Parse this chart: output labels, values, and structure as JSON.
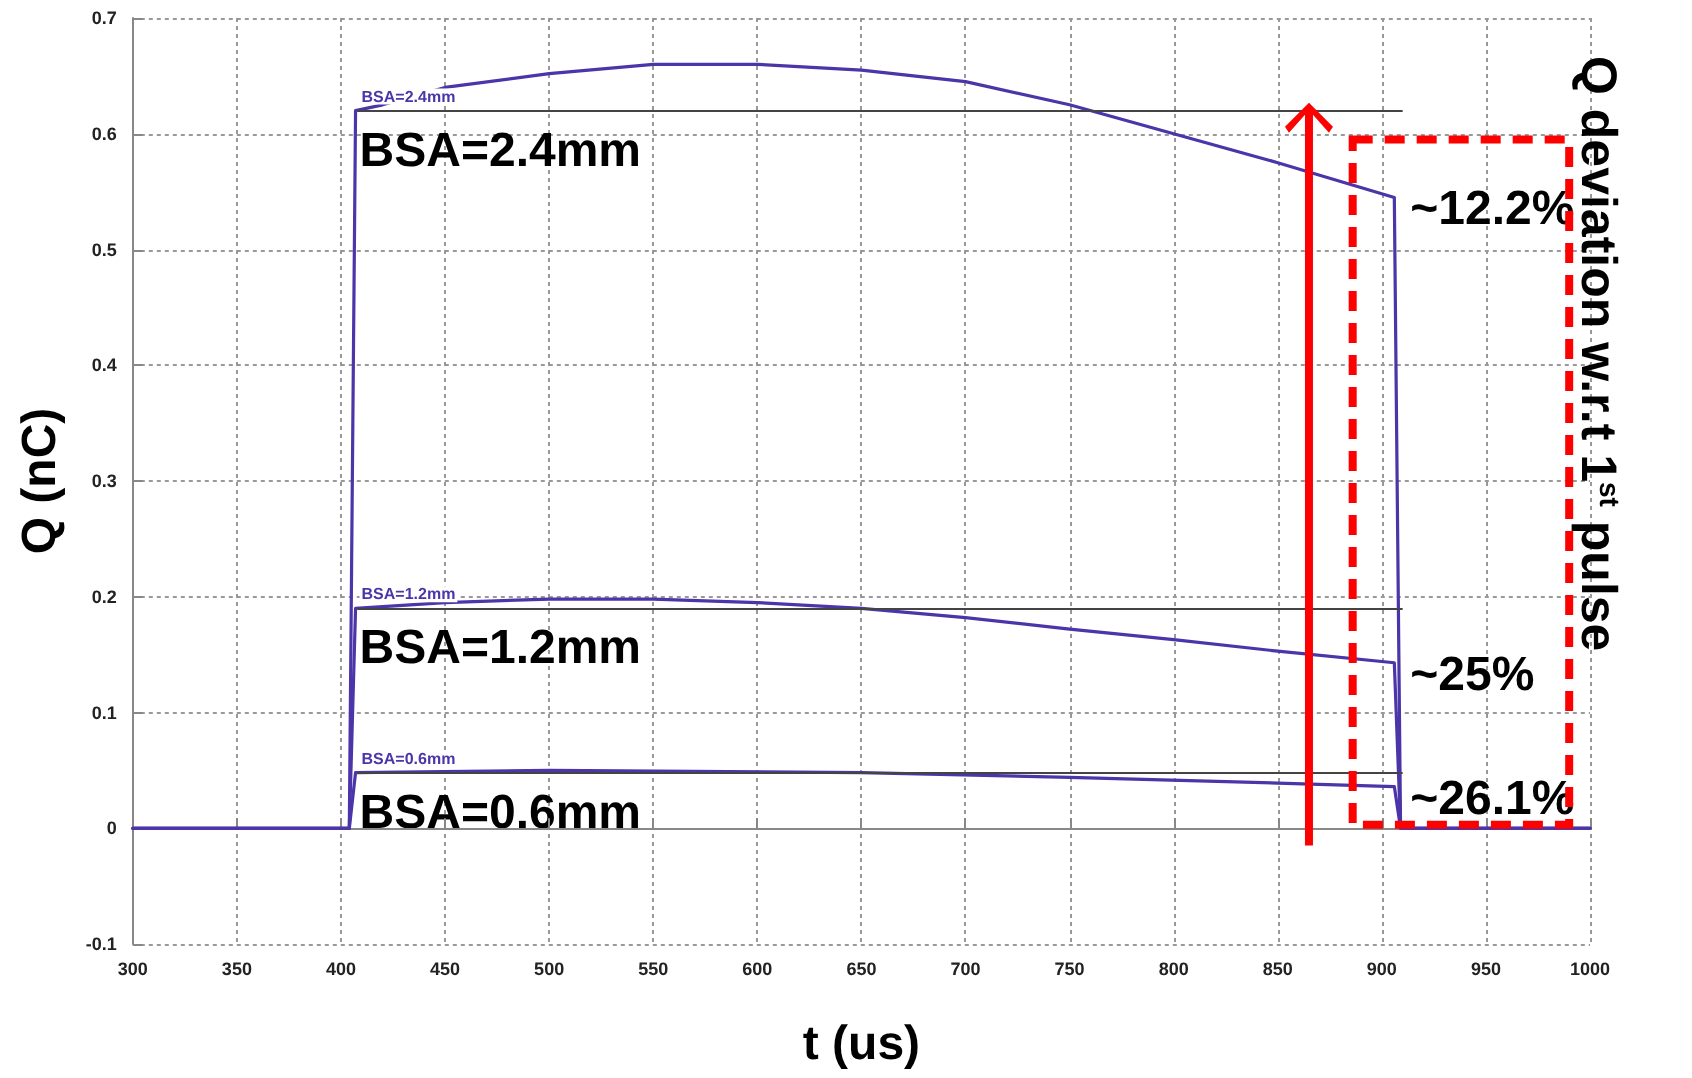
{
  "chart_data": {
    "type": "line",
    "xlabel": "t (us)",
    "ylabel": "Q (nC)",
    "xlim": [
      300,
      1000
    ],
    "xticks": [
      300,
      350,
      400,
      450,
      500,
      550,
      600,
      650,
      700,
      750,
      800,
      850,
      900,
      950,
      1000
    ],
    "ylim": [
      -0.1,
      0.7
    ],
    "yticks": [
      -0.1,
      0,
      0.1,
      0.2,
      0.3,
      0.4,
      0.5,
      0.6,
      0.7
    ],
    "grid": true,
    "legend": false,
    "marker": "none",
    "line_style": "solid",
    "series": [
      {
        "name": "BSA=2.4mm",
        "color": "#4b35a8",
        "x": [
          300,
          404,
          407,
          420,
          450,
          500,
          550,
          600,
          650,
          700,
          750,
          800,
          850,
          906,
          909,
          1000
        ],
        "values": [
          0,
          0,
          0.62,
          0.625,
          0.64,
          0.652,
          0.66,
          0.66,
          0.655,
          0.645,
          0.625,
          0.6,
          0.575,
          0.545,
          0,
          0
        ]
      },
      {
        "name": "BSA=1.2mm",
        "color": "#4b35a8",
        "x": [
          300,
          404,
          407,
          450,
          500,
          550,
          600,
          650,
          700,
          750,
          800,
          850,
          906,
          909,
          1000
        ],
        "values": [
          0,
          0,
          0.19,
          0.195,
          0.198,
          0.198,
          0.195,
          0.19,
          0.182,
          0.172,
          0.163,
          0.153,
          0.143,
          0,
          0
        ]
      },
      {
        "name": "BSA=0.6mm",
        "color": "#4b35a8",
        "x": [
          300,
          404,
          407,
          500,
          650,
          750,
          850,
          906,
          909,
          1000
        ],
        "values": [
          0,
          0,
          0.048,
          0.05,
          0.048,
          0.044,
          0.039,
          0.036,
          0,
          0
        ]
      }
    ],
    "ref_lines": [
      {
        "axis": "y",
        "value": 0.62,
        "color": "#444444"
      },
      {
        "axis": "y",
        "value": 0.19,
        "color": "#444444"
      },
      {
        "axis": "y",
        "value": 0.048,
        "color": "#444444"
      }
    ],
    "annotations": [
      "BSA=2.4mm",
      "BSA=1.2mm",
      "BSA=0.6mm",
      "~12.2%",
      "~25%",
      "~26.1%",
      "Q deviation w.r.t 1$^{st}$ pulse"
    ]
  }
}
